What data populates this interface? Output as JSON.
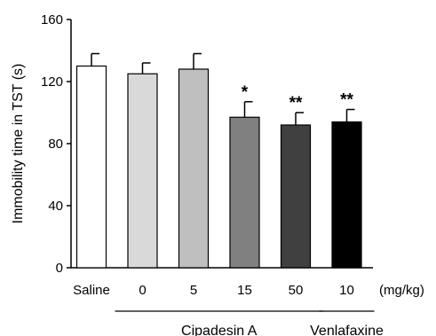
{
  "chart_data": {
    "type": "bar",
    "ylabel": "Immobility time in TST (s)",
    "ylim": [
      0,
      160
    ],
    "yticks": [
      0,
      40,
      80,
      120,
      160
    ],
    "categories": [
      "Saline",
      "0",
      "5",
      "15",
      "50",
      "10"
    ],
    "values": [
      130,
      125,
      128,
      97,
      92,
      94
    ],
    "errors": [
      8,
      7,
      10,
      10,
      8,
      8
    ],
    "significance": [
      "",
      "",
      "",
      "*",
      "**",
      "**"
    ],
    "colors": [
      "#ffffff",
      "#d9d9d9",
      "#bfbfbf",
      "#808080",
      "#404040",
      "#000000"
    ],
    "unit_label": "(mg/kg)",
    "groups": [
      {
        "name": "Cipadesin A",
        "start": 1,
        "end": 4
      },
      {
        "name": "Venlafaxine",
        "start": 5,
        "end": 5
      }
    ],
    "grid": false,
    "legend": "none"
  }
}
